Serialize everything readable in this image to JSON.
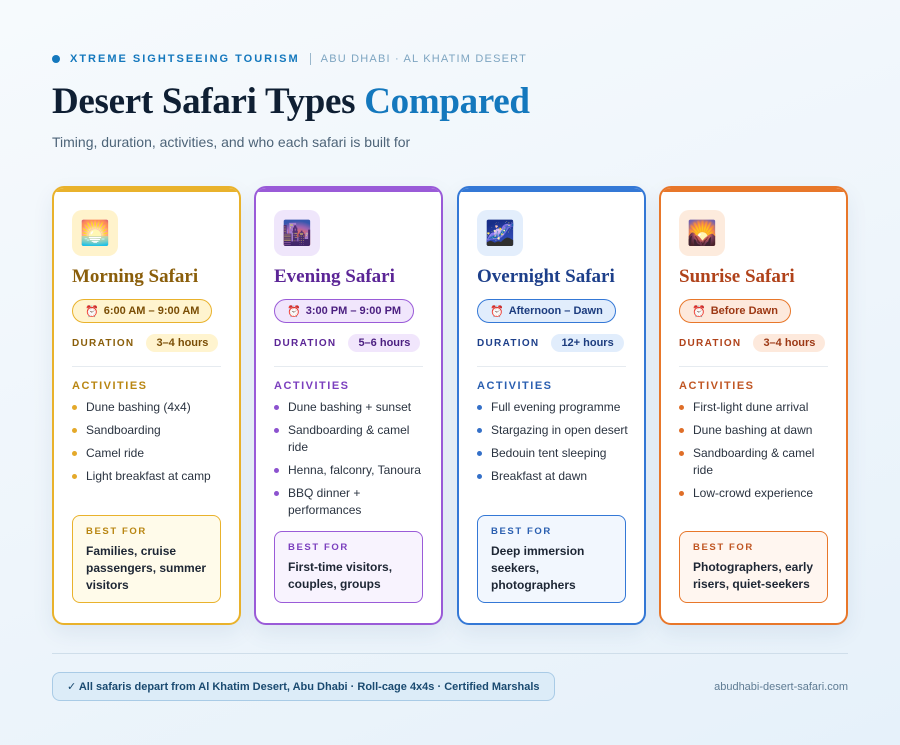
{
  "header": {
    "brand": "XTREME SIGHTSEEING TOURISM",
    "location": "ABU DHABI · AL KHATIM DESERT",
    "title_main": "Desert Safari Types ",
    "title_accent": "Compared",
    "subtitle": "Timing, duration, activities, and who each safari is built for"
  },
  "labels": {
    "duration": "DURATION",
    "activities": "ACTIVITIES",
    "best_for": "BEST FOR"
  },
  "cards": [
    {
      "name": "Morning Safari",
      "icon": "sunrise-over-horizon-icon",
      "icon_glyph": "🌅",
      "time": "6:00 AM – 9:00 AM",
      "duration": "3–4 hours",
      "activities": [
        "Dune bashing (4x4)",
        "Sandboarding",
        "Camel ride",
        "Light breakfast at camp"
      ],
      "best_for": "Families, cruise passengers, summer visitors",
      "colors": {
        "accent": "#e9b22c",
        "title": "#8a5e0a",
        "pill_bg": "#fff4cf",
        "pill_text": "#7a4e06",
        "tile_bg": "#fff3cc",
        "best_bg": "#fffbea",
        "label": "#b98612",
        "bullet": "#e4a92a"
      }
    },
    {
      "name": "Evening Safari",
      "icon": "city-at-dusk-icon",
      "icon_glyph": "🌆",
      "time": "3:00 PM – 9:00 PM",
      "duration": "5–6 hours",
      "activities": [
        "Dune bashing + sunset",
        "Sandboarding & camel ride",
        "Henna, falconry, Tanoura",
        "BBQ dinner + performances"
      ],
      "best_for": "First-time visitors, couples, groups",
      "colors": {
        "accent": "#9a5bd8",
        "title": "#5b2596",
        "pill_bg": "#f1e6fc",
        "pill_text": "#4b1f80",
        "tile_bg": "#efe6fb",
        "best_bg": "#f8f3fe",
        "label": "#7b3fbe",
        "bullet": "#8c52cf"
      }
    },
    {
      "name": "Overnight Safari",
      "icon": "milky-way-icon",
      "icon_glyph": "🌌",
      "time": "Afternoon – Dawn",
      "duration": "12+ hours",
      "activities": [
        "Full evening programme",
        "Stargazing in open desert",
        "Bedouin tent sleeping",
        "Breakfast at dawn"
      ],
      "best_for": "Deep immersion seekers, photographers",
      "colors": {
        "accent": "#3478d6",
        "title": "#1d3f8a",
        "pill_bg": "#e1edfc",
        "pill_text": "#1c3c7e",
        "tile_bg": "#e3eefc",
        "best_bg": "#f2f7fe",
        "label": "#2a5fb0",
        "bullet": "#3470c8"
      }
    },
    {
      "name": "Sunrise Safari",
      "icon": "sunrise-over-mountains-icon",
      "icon_glyph": "🌄",
      "time": "Before Dawn",
      "duration": "3–4 hours",
      "activities": [
        "First-light dune arrival",
        "Dune bashing at dawn",
        "Sandboarding & camel ride",
        "Low-crowd experience"
      ],
      "best_for": "Photographers, early risers, quiet-seekers",
      "colors": {
        "accent": "#e8772a",
        "title": "#b0421a",
        "pill_bg": "#fde9dc",
        "pill_text": "#9c3814",
        "tile_bg": "#fdebdd",
        "best_bg": "#fff6f0",
        "label": "#c05623",
        "bullet": "#df6e28"
      }
    }
  ],
  "footer": {
    "note": "✓ All safaris depart from Al Khatim Desert, Abu Dhabi · Roll-cage 4x4s · Certified Marshals",
    "url": "abudhabi-desert-safari.com"
  }
}
